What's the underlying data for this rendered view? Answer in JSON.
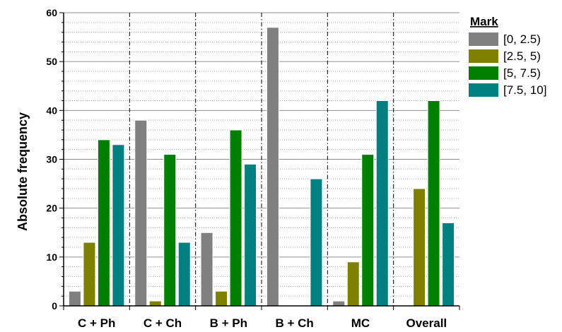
{
  "chart_data": {
    "type": "bar",
    "title": "",
    "xlabel": "",
    "ylabel": "Absolute frequency",
    "ylim": [
      0,
      60
    ],
    "yticks": [
      0,
      10,
      20,
      30,
      40,
      50,
      60
    ],
    "minor_ticks_per_major": 5,
    "grid": {
      "major_horizontal": true,
      "minor_horizontal": "dotted",
      "category_separators": "dash-dot"
    },
    "legend": {
      "title": "Mark",
      "position": "right"
    },
    "categories": [
      "C + Ph",
      "C + Ch",
      "B + Ph",
      "B + Ch",
      "MC",
      "Overall"
    ],
    "series": [
      {
        "name": "[0, 2.5)",
        "color": "#808080",
        "values": [
          3,
          38,
          15,
          57,
          1,
          0
        ]
      },
      {
        "name": "[2.5, 5)",
        "color": "#808000",
        "values": [
          13,
          1,
          3,
          0,
          9,
          24
        ]
      },
      {
        "name": "[5, 7.5)",
        "color": "#008000",
        "values": [
          34,
          31,
          36,
          0,
          31,
          42
        ]
      },
      {
        "name": "[7.5, 10]",
        "color": "#008080",
        "values": [
          33,
          13,
          29,
          26,
          42,
          17
        ]
      }
    ]
  }
}
